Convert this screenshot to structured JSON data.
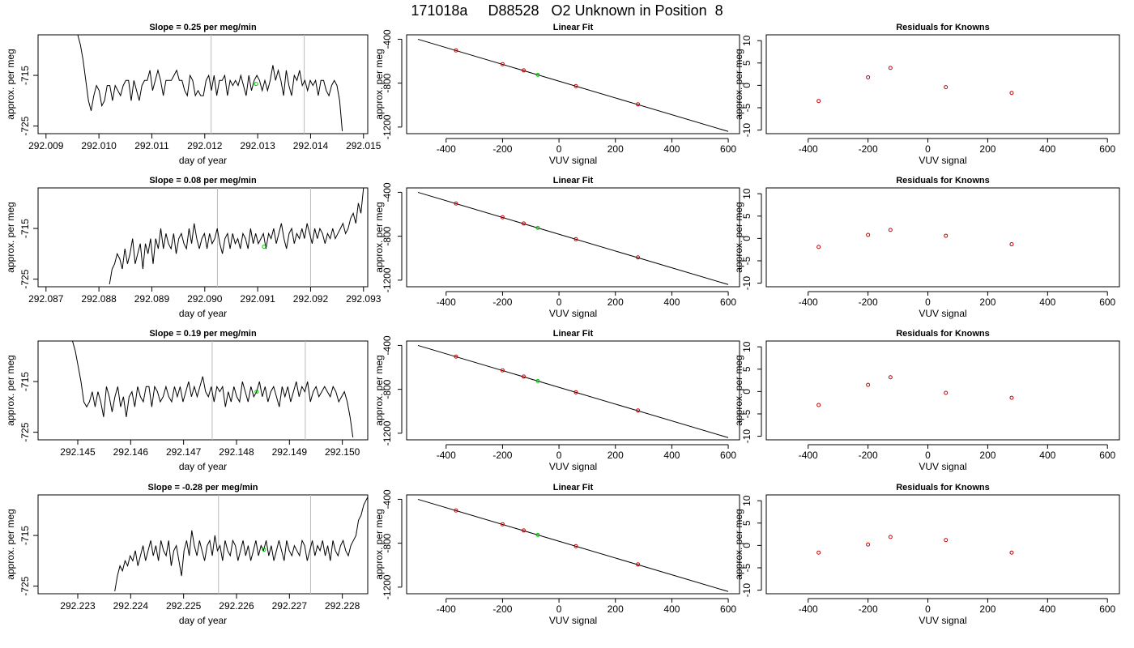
{
  "page": {
    "title": "171018a     D88528   O2 Unknown in Position  8"
  },
  "colors": {
    "trace": "#000000",
    "marker_known": "#cc0000",
    "marker_unknown": "#00cc00",
    "divider": "#bbbbbb",
    "axis": "#000000"
  },
  "chart_data": [
    {
      "type": "line",
      "panel": "time-series",
      "row": 1,
      "title": "Slope =  0.25  per meg/min",
      "xlabel": "day of year",
      "ylabel": "approx. per meg",
      "xlim": [
        292.00885,
        292.01508
      ],
      "ylim": [
        -726.5,
        -707
      ],
      "xticks": [
        "292.009",
        "292.010",
        "292.011",
        "292.012",
        "292.013",
        "292.014",
        "292.015"
      ],
      "yticks": [
        "-715",
        "-725"
      ],
      "dividers_x": [
        292.01212,
        292.01388
      ],
      "marker": {
        "x": 292.01297,
        "y": -716.7
      },
      "series": [
        {
          "x_start": 292.0096,
          "x_end": 292.0146,
          "values": [
            -707,
            -709,
            -712,
            -716,
            -720,
            -722,
            -719,
            -717,
            -718,
            -721,
            -720,
            -717,
            -717,
            -720,
            -717,
            -718,
            -719,
            -717,
            -716,
            -716,
            -720,
            -716,
            -718,
            -720,
            -717,
            -716,
            -716,
            -714,
            -718,
            -716,
            -714,
            -716,
            -719,
            -716,
            -716,
            -716,
            -715,
            -714,
            -716,
            -716,
            -718,
            -719,
            -715,
            -716,
            -719,
            -718,
            -719,
            -719,
            -716,
            -715,
            -718,
            -715,
            -719,
            -716,
            -716,
            -715,
            -719,
            -716,
            -717,
            -716,
            -717,
            -715,
            -717,
            -719,
            -715,
            -718,
            -716,
            -715,
            -716,
            -718,
            -716,
            -718,
            -716,
            -713,
            -716,
            -714,
            -716,
            -719,
            -714,
            -717,
            -719,
            -715,
            -716,
            -714,
            -717,
            -716,
            -718,
            -716,
            -717,
            -716,
            -719,
            -716,
            -716,
            -718,
            -719,
            -717,
            -716,
            -717,
            -720,
            -726
          ]
        }
      ]
    },
    {
      "type": "scatter",
      "panel": "linear-fit",
      "row": 1,
      "title": "Linear Fit",
      "xlabel": "VUV signal",
      "ylabel": "approx. per meg",
      "xlim": [
        -540,
        640
      ],
      "ylim": [
        -1260,
        -360
      ],
      "xticks": [
        -400,
        -200,
        0,
        200,
        400,
        600
      ],
      "yticks": [
        -400,
        -800,
        -1200
      ],
      "fit_line": {
        "x": [
          -500,
          600
        ],
        "y": [
          -400,
          -1240
        ]
      },
      "knowns": [
        {
          "x": -365,
          "y": -502
        },
        {
          "x": -200,
          "y": -627
        },
        {
          "x": -125,
          "y": -684
        },
        {
          "x": 60,
          "y": -827
        },
        {
          "x": 280,
          "y": -993
        }
      ],
      "unknown": {
        "x": -75,
        "y": -724
      }
    },
    {
      "type": "scatter",
      "panel": "residuals",
      "row": 1,
      "title": "Residuals for Knowns",
      "xlabel": "VUV signal",
      "ylabel": "approx. per meg",
      "xlim": [
        -540,
        640
      ],
      "ylim": [
        -10.8,
        11.3
      ],
      "xticks": [
        -400,
        -200,
        0,
        200,
        400,
        600
      ],
      "yticks": [
        10,
        5,
        0,
        -5,
        -10
      ],
      "points": [
        {
          "x": -365,
          "y": -3.5
        },
        {
          "x": -200,
          "y": 1.8
        },
        {
          "x": -125,
          "y": 3.9
        },
        {
          "x": 60,
          "y": -0.4
        },
        {
          "x": 280,
          "y": -1.7
        }
      ]
    },
    {
      "type": "line",
      "panel": "time-series",
      "row": 2,
      "title": "Slope =  0.08  per meg/min",
      "xlabel": "day of year",
      "ylabel": "approx. per meg",
      "xlim": [
        292.08685,
        292.09308
      ],
      "ylim": [
        -726.5,
        -707
      ],
      "xticks": [
        "292.087",
        "292.088",
        "292.089",
        "292.090",
        "292.091",
        "292.092",
        "292.093"
      ],
      "yticks": [
        "-715",
        "-725"
      ],
      "dividers_x": [
        292.09024,
        292.092
      ],
      "marker": {
        "x": 292.09112,
        "y": -718.6
      },
      "series": [
        {
          "x_start": 292.0882,
          "x_end": 292.093,
          "values": [
            -726,
            -723,
            -722,
            -720,
            -721,
            -723,
            -719,
            -722,
            -720,
            -717,
            -722,
            -720,
            -718,
            -723,
            -718,
            -720,
            -717,
            -722,
            -717,
            -719,
            -715,
            -719,
            -716,
            -718,
            -719,
            -716,
            -720,
            -717,
            -716,
            -718,
            -719,
            -715,
            -718,
            -714,
            -717,
            -719,
            -717,
            -716,
            -719,
            -716,
            -718,
            -717,
            -715,
            -718,
            -720,
            -717,
            -716,
            -719,
            -716,
            -718,
            -717,
            -719,
            -716,
            -717,
            -719,
            -715,
            -718,
            -716,
            -718,
            -717,
            -716,
            -719,
            -716,
            -717,
            -715,
            -718,
            -716,
            -714,
            -717,
            -719,
            -716,
            -715,
            -718,
            -716,
            -717,
            -715,
            -717,
            -714,
            -716,
            -718,
            -715,
            -717,
            -715,
            -716,
            -718,
            -716,
            -717,
            -715,
            -717,
            -716,
            -715,
            -714,
            -716,
            -715,
            -713,
            -712,
            -714,
            -710,
            -712,
            -707
          ]
        }
      ]
    },
    {
      "type": "scatter",
      "panel": "linear-fit",
      "row": 2,
      "title": "Linear Fit",
      "xlabel": "VUV signal",
      "ylabel": "approx. per meg",
      "xlim": [
        -540,
        640
      ],
      "ylim": [
        -1260,
        -360
      ],
      "xticks": [
        -400,
        -200,
        0,
        200,
        400,
        600
      ],
      "yticks": [
        -400,
        -800,
        -1200
      ],
      "fit_line": {
        "x": [
          -500,
          600
        ],
        "y": [
          -400,
          -1240
        ]
      },
      "knowns": [
        {
          "x": -365,
          "y": -502
        },
        {
          "x": -200,
          "y": -627
        },
        {
          "x": -125,
          "y": -684
        },
        {
          "x": 60,
          "y": -827
        },
        {
          "x": 280,
          "y": -993
        }
      ],
      "unknown": {
        "x": -75,
        "y": -724
      }
    },
    {
      "type": "scatter",
      "panel": "residuals",
      "row": 2,
      "title": "Residuals for Knowns",
      "xlabel": "VUV signal",
      "ylabel": "approx. per meg",
      "xlim": [
        -540,
        640
      ],
      "ylim": [
        -10.8,
        11.3
      ],
      "xticks": [
        -400,
        -200,
        0,
        200,
        400,
        600
      ],
      "yticks": [
        10,
        5,
        0,
        -5,
        -10
      ],
      "points": [
        {
          "x": -365,
          "y": -1.9
        },
        {
          "x": -200,
          "y": 0.8
        },
        {
          "x": -125,
          "y": 1.9
        },
        {
          "x": 60,
          "y": 0.6
        },
        {
          "x": 280,
          "y": -1.3
        }
      ]
    },
    {
      "type": "line",
      "panel": "time-series",
      "row": 3,
      "title": "Slope =  0.19  per meg/min",
      "xlabel": "day of year",
      "ylabel": "approx. per meg",
      "xlim": [
        292.14425,
        292.15048
      ],
      "ylim": [
        -726.5,
        -707
      ],
      "xticks": [
        "292.145",
        "292.146",
        "292.147",
        "292.148",
        "292.149",
        "292.150"
      ],
      "yticks": [
        "-715",
        "-725"
      ],
      "dividers_x": [
        292.14754,
        292.1493
      ],
      "marker": {
        "x": 292.14838,
        "y": -717.0
      },
      "series": [
        {
          "x_start": 292.1449,
          "x_end": 292.1502,
          "values": [
            -707,
            -709,
            -712,
            -715,
            -719,
            -720,
            -719,
            -717,
            -720,
            -717,
            -719,
            -722,
            -716,
            -718,
            -721,
            -718,
            -716,
            -720,
            -718,
            -722,
            -718,
            -717,
            -720,
            -716,
            -718,
            -719,
            -716,
            -716,
            -720,
            -716,
            -717,
            -719,
            -718,
            -716,
            -718,
            -719,
            -716,
            -718,
            -716,
            -719,
            -717,
            -715,
            -718,
            -716,
            -718,
            -716,
            -714,
            -717,
            -718,
            -716,
            -719,
            -716,
            -717,
            -716,
            -720,
            -717,
            -719,
            -716,
            -718,
            -719,
            -715,
            -717,
            -719,
            -716,
            -718,
            -717,
            -715,
            -718,
            -716,
            -719,
            -717,
            -716,
            -718,
            -720,
            -716,
            -718,
            -716,
            -719,
            -717,
            -715,
            -718,
            -716,
            -717,
            -715,
            -719,
            -717,
            -716,
            -718,
            -717,
            -716,
            -717,
            -718,
            -716,
            -717,
            -719,
            -718,
            -717,
            -719,
            -722,
            -726
          ]
        }
      ]
    },
    {
      "type": "scatter",
      "panel": "linear-fit",
      "row": 3,
      "title": "Linear Fit",
      "xlabel": "VUV signal",
      "ylabel": "approx. per meg",
      "xlim": [
        -540,
        640
      ],
      "ylim": [
        -1260,
        -360
      ],
      "xticks": [
        -400,
        -200,
        0,
        200,
        400,
        600
      ],
      "yticks": [
        -400,
        -800,
        -1200
      ],
      "fit_line": {
        "x": [
          -500,
          600
        ],
        "y": [
          -400,
          -1240
        ]
      },
      "knowns": [
        {
          "x": -365,
          "y": -502
        },
        {
          "x": -200,
          "y": -627
        },
        {
          "x": -125,
          "y": -684
        },
        {
          "x": 60,
          "y": -827
        },
        {
          "x": 280,
          "y": -993
        }
      ],
      "unknown": {
        "x": -75,
        "y": -724
      }
    },
    {
      "type": "scatter",
      "panel": "residuals",
      "row": 3,
      "title": "Residuals for Knowns",
      "xlabel": "VUV signal",
      "ylabel": "approx. per meg",
      "xlim": [
        -540,
        640
      ],
      "ylim": [
        -10.8,
        11.3
      ],
      "xticks": [
        -400,
        -200,
        0,
        200,
        400,
        600
      ],
      "yticks": [
        10,
        5,
        0,
        -5,
        -10
      ],
      "points": [
        {
          "x": -365,
          "y": -3.0
        },
        {
          "x": -200,
          "y": 1.5
        },
        {
          "x": -125,
          "y": 3.2
        },
        {
          "x": 60,
          "y": -0.3
        },
        {
          "x": 280,
          "y": -1.4
        }
      ]
    },
    {
      "type": "line",
      "panel": "time-series",
      "row": 4,
      "title": "Slope =  -0.28  per meg/min",
      "xlabel": "day of year",
      "ylabel": "approx. per meg",
      "xlim": [
        292.22225,
        292.22848
      ],
      "ylim": [
        -726.5,
        -707
      ],
      "xticks": [
        "292.223",
        "292.224",
        "292.225",
        "292.226",
        "292.227",
        "292.228"
      ],
      "yticks": [
        "-715",
        "-725"
      ],
      "dividers_x": [
        292.22566,
        292.2274
      ],
      "marker": {
        "x": 292.22652,
        "y": -717.8
      },
      "series": [
        {
          "x_start": 292.2237,
          "x_end": 292.2285,
          "values": [
            -726,
            -723,
            -721,
            -722,
            -720,
            -721,
            -719,
            -720,
            -718,
            -721,
            -719,
            -717,
            -720,
            -718,
            -716,
            -719,
            -717,
            -720,
            -716,
            -718,
            -719,
            -716,
            -721,
            -718,
            -717,
            -720,
            -723,
            -718,
            -716,
            -719,
            -714,
            -717,
            -719,
            -716,
            -718,
            -720,
            -717,
            -716,
            -719,
            -715,
            -718,
            -717,
            -720,
            -716,
            -718,
            -719,
            -716,
            -717,
            -720,
            -718,
            -716,
            -719,
            -717,
            -720,
            -718,
            -716,
            -719,
            -717,
            -718,
            -716,
            -719,
            -717,
            -720,
            -718,
            -716,
            -718,
            -720,
            -716,
            -718,
            -719,
            -717,
            -718,
            -719,
            -716,
            -717,
            -720,
            -718,
            -716,
            -719,
            -717,
            -718,
            -716,
            -719,
            -717,
            -720,
            -716,
            -718,
            -719,
            -717,
            -716,
            -718,
            -719,
            -717,
            -716,
            -715,
            -712,
            -711,
            -709,
            -708,
            -707
          ]
        }
      ]
    },
    {
      "type": "scatter",
      "panel": "linear-fit",
      "row": 4,
      "title": "Linear Fit",
      "xlabel": "VUV signal",
      "ylabel": "approx. per meg",
      "xlim": [
        -540,
        640
      ],
      "ylim": [
        -1260,
        -360
      ],
      "xticks": [
        -400,
        -200,
        0,
        200,
        400,
        600
      ],
      "yticks": [
        -400,
        -800,
        -1200
      ],
      "fit_line": {
        "x": [
          -500,
          600
        ],
        "y": [
          -400,
          -1240
        ]
      },
      "knowns": [
        {
          "x": -365,
          "y": -502
        },
        {
          "x": -200,
          "y": -627
        },
        {
          "x": -125,
          "y": -684
        },
        {
          "x": 60,
          "y": -827
        },
        {
          "x": 280,
          "y": -993
        }
      ],
      "unknown": {
        "x": -75,
        "y": -724
      }
    },
    {
      "type": "scatter",
      "panel": "residuals",
      "row": 4,
      "title": "Residuals for Knowns",
      "xlabel": "VUV signal",
      "ylabel": "approx. per meg",
      "xlim": [
        -540,
        640
      ],
      "ylim": [
        -10.8,
        11.3
      ],
      "xticks": [
        -400,
        -200,
        0,
        200,
        400,
        600
      ],
      "yticks": [
        10,
        5,
        0,
        -5,
        -10
      ],
      "points": [
        {
          "x": -365,
          "y": -1.6
        },
        {
          "x": -200,
          "y": 0.2
        },
        {
          "x": -125,
          "y": 1.9
        },
        {
          "x": 60,
          "y": 1.2
        },
        {
          "x": 280,
          "y": -1.6
        }
      ]
    }
  ]
}
